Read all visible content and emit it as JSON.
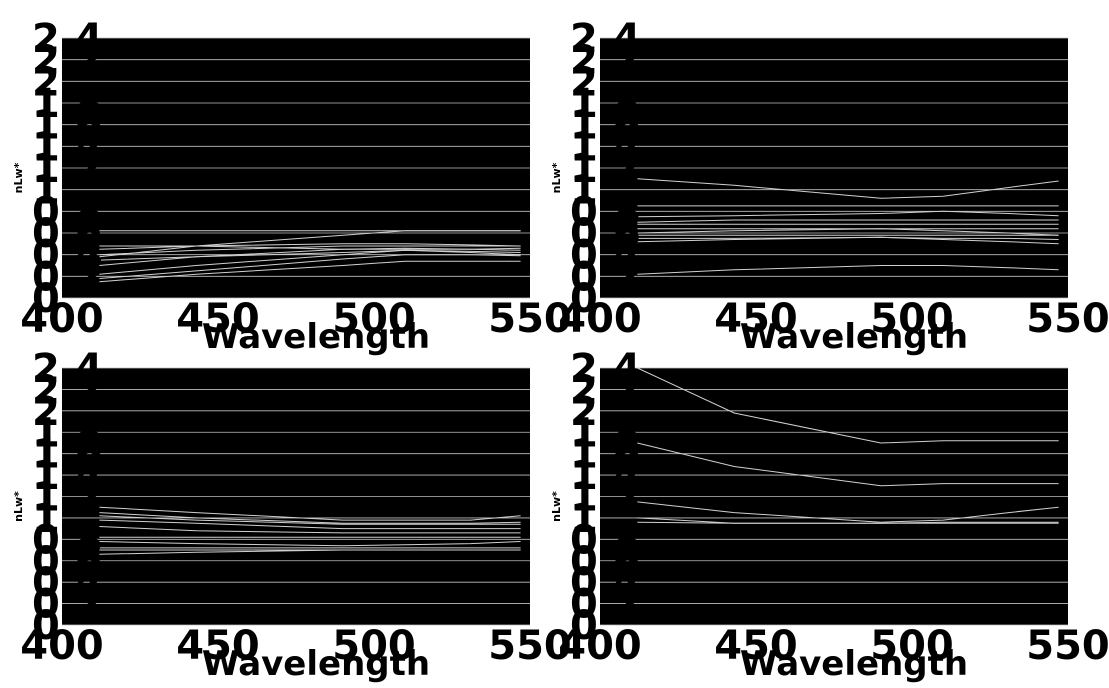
{
  "colors": {
    "background": "#ffffff",
    "plot_background": "#000000",
    "grid": "#bfbfbf",
    "series_line": "#d0d0d0",
    "axis_text": "#000000"
  },
  "chart_data": [
    {
      "type": "line",
      "panel": "top-left",
      "xlabel": "Wavelength",
      "ylabel": "nLw*",
      "xlim": [
        400,
        550
      ],
      "ylim": [
        0,
        2.4
      ],
      "xticks": [
        "400",
        "450",
        "500",
        "550"
      ],
      "yticks": [
        "0",
        "0.2",
        "0.4",
        "0.6",
        "0.8",
        "1",
        "1.2",
        "1.4",
        "1.6",
        "1.8",
        "2",
        "2.2",
        "2.4"
      ],
      "grid": true,
      "x": [
        412,
        443,
        490,
        510,
        531,
        547
      ],
      "series": [
        {
          "values": [
            0.62,
            0.62,
            0.62,
            0.62,
            0.62,
            0.62
          ]
        },
        {
          "values": [
            0.38,
            0.48,
            0.58,
            0.62,
            0.62,
            0.62
          ]
        },
        {
          "values": [
            0.45,
            0.48,
            0.5,
            0.5,
            0.49,
            0.48
          ]
        },
        {
          "values": [
            0.48,
            0.48,
            0.45,
            0.45,
            0.45,
            0.46
          ]
        },
        {
          "values": [
            0.4,
            0.44,
            0.48,
            0.48,
            0.48,
            0.48
          ]
        },
        {
          "values": [
            0.3,
            0.38,
            0.45,
            0.46,
            0.45,
            0.44
          ]
        },
        {
          "values": [
            0.35,
            0.38,
            0.42,
            0.44,
            0.43,
            0.42
          ]
        },
        {
          "values": [
            0.22,
            0.3,
            0.4,
            0.44,
            0.42,
            0.4
          ]
        },
        {
          "values": [
            0.18,
            0.25,
            0.36,
            0.4,
            0.4,
            0.39
          ]
        },
        {
          "values": [
            0.15,
            0.22,
            0.3,
            0.34,
            0.34,
            0.34
          ]
        }
      ]
    },
    {
      "type": "line",
      "panel": "top-right",
      "xlabel": "Wavelength",
      "ylabel": "nLw*",
      "xlim": [
        400,
        550
      ],
      "ylim": [
        0,
        2.4
      ],
      "xticks": [
        "400",
        "450",
        "500",
        "550"
      ],
      "yticks": [
        "0",
        "0.2",
        "0.4",
        "0.6",
        "0.8",
        "1",
        "1.2",
        "1.4",
        "1.6",
        "1.8",
        "2",
        "2.2",
        "2.4"
      ],
      "grid": true,
      "x": [
        412,
        443,
        490,
        510,
        531,
        547
      ],
      "series": [
        {
          "values": [
            1.1,
            1.04,
            0.92,
            0.94,
            1.02,
            1.08
          ]
        },
        {
          "values": [
            0.85,
            0.85,
            0.85,
            0.85,
            0.85,
            0.85
          ]
        },
        {
          "values": [
            0.75,
            0.76,
            0.78,
            0.8,
            0.78,
            0.76
          ]
        },
        {
          "values": [
            0.7,
            0.72,
            0.72,
            0.72,
            0.72,
            0.72
          ]
        },
        {
          "values": [
            0.68,
            0.68,
            0.68,
            0.68,
            0.68,
            0.68
          ]
        },
        {
          "values": [
            0.64,
            0.64,
            0.64,
            0.64,
            0.64,
            0.64
          ]
        },
        {
          "values": [
            0.6,
            0.62,
            0.64,
            0.62,
            0.6,
            0.58
          ]
        },
        {
          "values": [
            0.58,
            0.58,
            0.58,
            0.58,
            0.58,
            0.58
          ]
        },
        {
          "values": [
            0.55,
            0.55,
            0.56,
            0.55,
            0.55,
            0.54
          ]
        },
        {
          "values": [
            0.52,
            0.54,
            0.56,
            0.54,
            0.52,
            0.5
          ]
        },
        {
          "values": [
            0.22,
            0.26,
            0.3,
            0.3,
            0.28,
            0.26
          ]
        }
      ]
    },
    {
      "type": "line",
      "panel": "bottom-left",
      "xlabel": "Wavelength",
      "ylabel": "nLw*",
      "xlim": [
        400,
        550
      ],
      "ylim": [
        0,
        2.4
      ],
      "xticks": [
        "400",
        "450",
        "500",
        "550"
      ],
      "yticks": [
        "0",
        "0.2",
        "0.4",
        "0.6",
        "0.8",
        "1",
        "1.2",
        "1.4",
        "1.6",
        "1.8",
        "2",
        "2.2",
        "2.4"
      ],
      "grid": true,
      "x": [
        412,
        443,
        490,
        510,
        531,
        547
      ],
      "series": [
        {
          "values": [
            1.1,
            1.05,
            0.98,
            0.98,
            0.98,
            1.02
          ]
        },
        {
          "values": [
            1.05,
            1.0,
            0.95,
            0.95,
            0.95,
            0.96
          ]
        },
        {
          "values": [
            1.02,
            0.98,
            0.94,
            0.94,
            0.94,
            0.94
          ]
        },
        {
          "values": [
            0.98,
            0.95,
            0.9,
            0.9,
            0.9,
            0.9
          ]
        },
        {
          "values": [
            0.92,
            0.88,
            0.86,
            0.86,
            0.86,
            0.86
          ]
        },
        {
          "values": [
            0.82,
            0.82,
            0.82,
            0.82,
            0.82,
            0.82
          ]
        },
        {
          "values": [
            0.78,
            0.76,
            0.74,
            0.75,
            0.76,
            0.78
          ]
        },
        {
          "values": [
            0.72,
            0.72,
            0.72,
            0.72,
            0.72,
            0.72
          ]
        },
        {
          "values": [
            0.7,
            0.7,
            0.7,
            0.7,
            0.7,
            0.7
          ]
        },
        {
          "values": [
            0.66,
            0.68,
            0.7,
            0.7,
            0.7,
            0.7
          ]
        }
      ]
    },
    {
      "type": "line",
      "panel": "bottom-right",
      "xlabel": "Wavelength",
      "ylabel": "nLw*",
      "xlim": [
        400,
        550
      ],
      "ylim": [
        0,
        2.4
      ],
      "xticks": [
        "400",
        "450",
        "500",
        "550"
      ],
      "yticks": [
        "0",
        "0.2",
        "0.4",
        "0.6",
        "0.8",
        "1",
        "1.2",
        "1.4",
        "1.6",
        "1.8",
        "2",
        "2.2",
        "2.4"
      ],
      "grid": true,
      "x": [
        412,
        443,
        490,
        510,
        531,
        547
      ],
      "series": [
        {
          "values": [
            2.4,
            1.98,
            1.7,
            1.72,
            1.72,
            1.72
          ]
        },
        {
          "values": [
            1.7,
            1.48,
            1.3,
            1.32,
            1.32,
            1.32
          ]
        },
        {
          "values": [
            1.15,
            1.05,
            0.96,
            0.98,
            1.05,
            1.1
          ]
        },
        {
          "values": [
            1.0,
            0.95,
            0.95,
            0.96,
            0.96,
            0.96
          ]
        },
        {
          "values": [
            0.96,
            0.95,
            0.95,
            0.95,
            0.95,
            0.95
          ]
        }
      ]
    }
  ]
}
